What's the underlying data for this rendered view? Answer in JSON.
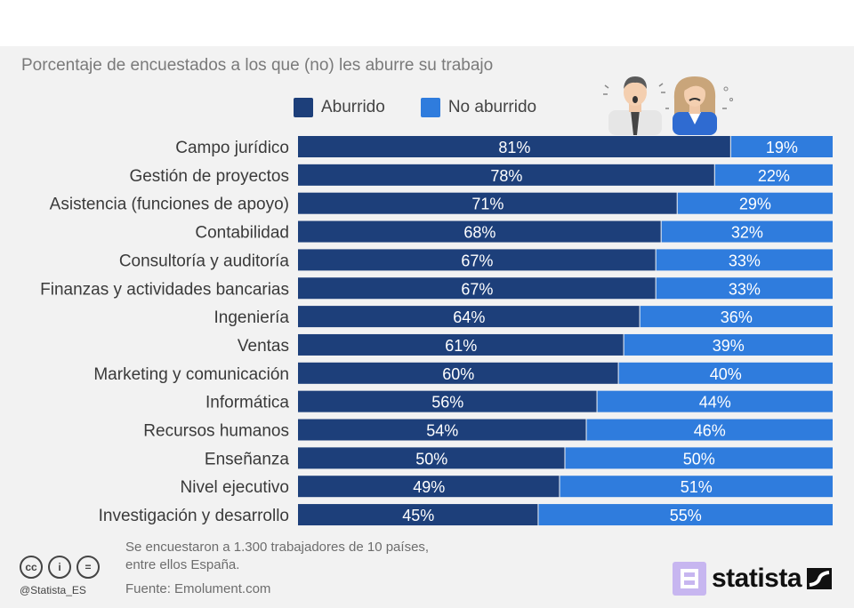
{
  "title": "Porcentaje de encuestados a los que (no) les aburre su trabajo",
  "legend": [
    {
      "label": "Aburrido",
      "color": "#1d3f7a"
    },
    {
      "label": "No aburrido",
      "color": "#2f7cdd"
    }
  ],
  "chart_data": {
    "type": "bar",
    "orientation": "horizontal",
    "stacked": true,
    "categories": [
      "Campo jurídico",
      "Gestión de proyectos",
      "Asistencia (funciones de apoyo)",
      "Contabilidad",
      "Consultoría y auditoría",
      "Finanzas y actividades bancarias",
      "Ingeniería",
      "Ventas",
      "Marketing y comunicación",
      "Informática",
      "Recursos humanos",
      "Enseñanza",
      "Nivel ejecutivo",
      "Investigación y desarrollo"
    ],
    "series": [
      {
        "name": "Aburrido",
        "color": "#1d3f7a",
        "values": [
          81,
          78,
          71,
          68,
          67,
          67,
          64,
          61,
          60,
          56,
          54,
          50,
          49,
          45
        ]
      },
      {
        "name": "No aburrido",
        "color": "#2f7cdd",
        "values": [
          19,
          22,
          29,
          32,
          33,
          33,
          36,
          39,
          40,
          44,
          46,
          50,
          51,
          55
        ]
      }
    ],
    "value_suffix": "%",
    "xlim": [
      0,
      100
    ],
    "grid": false,
    "legend_position": "top"
  },
  "footer": {
    "note_line1": "Se encuestaron a 1.300 trabajadores de 10 países,",
    "note_line2": "entre ellos España.",
    "source": "Fuente: Emolument.com",
    "handle": "@Statista_ES",
    "license_icons": [
      "cc",
      "i",
      "="
    ],
    "logo_text": "statista"
  },
  "icons": {
    "people": "bored-workers-icon",
    "license": "creative-commons-icon",
    "logo": "statista-logo-icon"
  }
}
